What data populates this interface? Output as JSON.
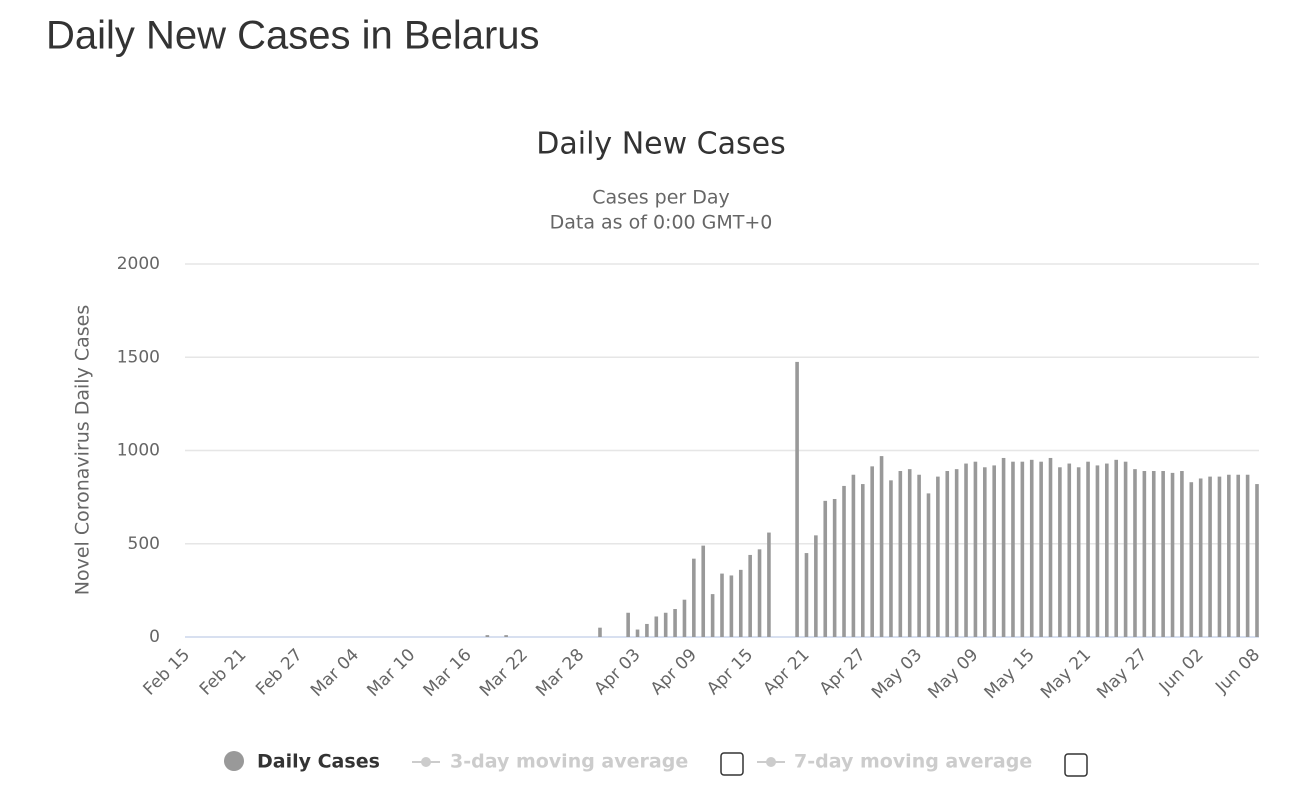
{
  "page_title": "Daily New Cases in Belarus",
  "chart_data": {
    "type": "bar",
    "title": "Daily New Cases",
    "subtitle": [
      "Cases per Day",
      "Data as of 0:00 GMT+0"
    ],
    "y_label": "Novel Coronavirus Daily Cases",
    "categories": [
      "Feb 15",
      null,
      null,
      null,
      null,
      null,
      "Feb 21",
      null,
      null,
      null,
      null,
      null,
      "Feb 27",
      null,
      null,
      null,
      null,
      null,
      "Mar 04",
      null,
      null,
      null,
      null,
      null,
      "Mar 10",
      null,
      null,
      null,
      null,
      null,
      "Mar 16",
      null,
      null,
      null,
      null,
      null,
      "Mar 22",
      null,
      null,
      null,
      null,
      null,
      "Mar 28",
      null,
      null,
      null,
      null,
      null,
      "Apr 03",
      null,
      null,
      null,
      null,
      null,
      "Apr 09",
      null,
      null,
      null,
      null,
      null,
      "Apr 15",
      null,
      null,
      null,
      null,
      null,
      "Apr 21",
      null,
      null,
      null,
      null,
      null,
      "Apr 27",
      null,
      null,
      null,
      null,
      null,
      "May 03",
      null,
      null,
      null,
      null,
      null,
      "May 09",
      null,
      null,
      null,
      null,
      null,
      "May 15",
      null,
      null,
      null,
      null,
      null,
      "May 21",
      null,
      null,
      null,
      null,
      null,
      "May 27",
      null,
      null,
      null,
      null,
      null,
      "Jun 02",
      null,
      null,
      null,
      null,
      null,
      "Jun 08"
    ],
    "series": [
      {
        "name": "Daily Cases",
        "color": "#999999",
        "values": [
          0,
          0,
          0,
          0,
          0,
          0,
          0,
          0,
          0,
          0,
          0,
          0,
          0,
          0,
          0,
          0,
          0,
          0,
          0,
          0,
          0,
          0,
          0,
          0,
          0,
          0,
          0,
          0,
          0,
          0,
          0,
          0,
          10,
          0,
          10,
          0,
          0,
          0,
          0,
          0,
          0,
          0,
          0,
          0,
          50,
          0,
          0,
          130,
          40,
          70,
          110,
          130,
          150,
          200,
          420,
          490,
          230,
          340,
          330,
          360,
          440,
          470,
          560,
          0,
          0,
          1475,
          450,
          545,
          730,
          740,
          810,
          870,
          820,
          915,
          970,
          840,
          890,
          900,
          870,
          770,
          860,
          890,
          900,
          930,
          940,
          910,
          920,
          960,
          940,
          940,
          950,
          940,
          960,
          910,
          930,
          910,
          940,
          920,
          930,
          950,
          940,
          900,
          890,
          890,
          890,
          880,
          890,
          830,
          850,
          860,
          860,
          870,
          870,
          870,
          820
        ]
      }
    ],
    "inactive_series": [
      {
        "name": "3-day moving average"
      },
      {
        "name": "7-day moving average"
      }
    ],
    "ylim": [
      0,
      2000
    ],
    "yticks": [
      0,
      500,
      1000,
      1500,
      2000
    ],
    "grid": true
  }
}
